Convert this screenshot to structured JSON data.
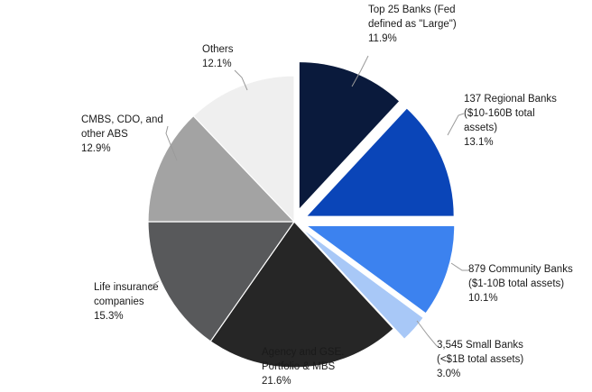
{
  "chart_data": {
    "type": "pie",
    "title": "",
    "slices": [
      {
        "label_lines": [
          "Top 25 Banks (Fed",
          "defined as \"Large\")"
        ],
        "value": 11.9,
        "value_label": "11.9%",
        "color": "#0a1a3c",
        "exploded": true
      },
      {
        "label_lines": [
          "137 Regional Banks",
          "($10-160B total",
          "assets)"
        ],
        "value": 13.1,
        "value_label": "13.1%",
        "color": "#0a45b8",
        "exploded": true
      },
      {
        "label_lines": [
          "879 Community Banks",
          "($1-10B total assets)"
        ],
        "value": 10.1,
        "value_label": "10.1%",
        "color": "#3c82ef",
        "exploded": true
      },
      {
        "label_lines": [
          "3,545 Small Banks",
          "(<$1B total assets)"
        ],
        "value": 3.0,
        "value_label": "3.0%",
        "color": "#a8c8f7",
        "exploded": true
      },
      {
        "label_lines": [
          "Agency and GSE.",
          "Portfolio & MBS"
        ],
        "value": 21.6,
        "value_label": "21.6%",
        "color": "#262626",
        "exploded": false
      },
      {
        "label_lines": [
          "Life insurance",
          "companies"
        ],
        "value": 15.3,
        "value_label": "15.3%",
        "color": "#58595b",
        "exploded": false
      },
      {
        "label_lines": [
          "CMBS, CDO, and",
          "other ABS"
        ],
        "value": 12.9,
        "value_label": "12.9%",
        "color": "#a3a3a3",
        "exploded": false
      },
      {
        "label_lines": [
          "Others"
        ],
        "value": 12.1,
        "value_label": "12.1%",
        "color": "#efefef",
        "exploded": false
      }
    ]
  }
}
